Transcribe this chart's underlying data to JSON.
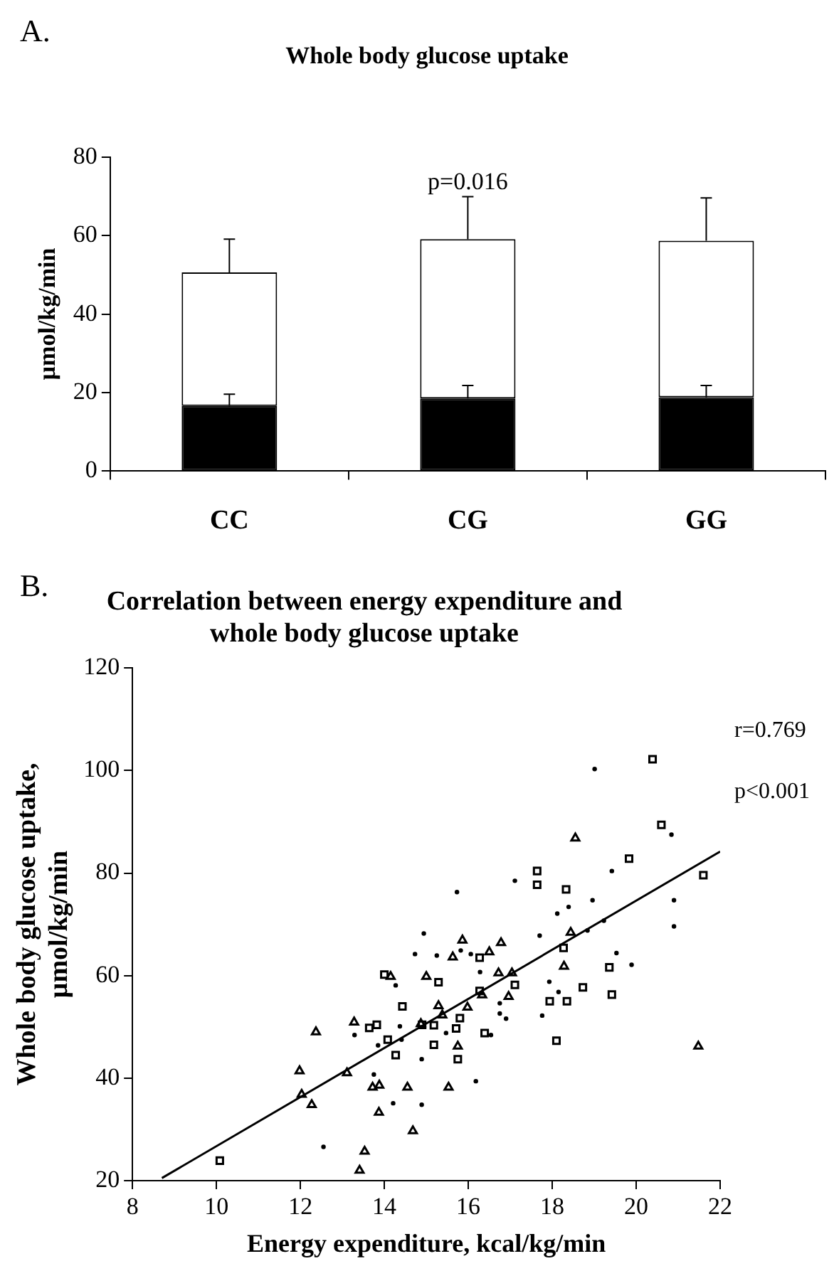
{
  "chart_data": [
    {
      "type": "bar",
      "title": "Whole body glucose uptake",
      "ylabel": "µmol/kg/min",
      "categories": [
        "CC",
        "CG",
        "GG"
      ],
      "stacked": true,
      "series": [
        {
          "color": "#000000",
          "values": [
            16.6,
            18.5,
            18.8
          ],
          "errors": [
            [
              16.6,
              19.6
            ],
            [
              18.5,
              21.8
            ],
            [
              18.8,
              21.8
            ]
          ]
        },
        {
          "color": "#ffffff",
          "values": [
            34.0,
            40.6,
            39.9
          ],
          "errors": [
            [
              50.6,
              59.1
            ],
            [
              59.1,
              69.9
            ],
            [
              58.7,
              69.6
            ]
          ]
        }
      ],
      "ylim": [
        0,
        80
      ],
      "yticks": [
        0,
        20,
        40,
        60,
        80
      ],
      "annotations": [
        "A.",
        "p=0.016"
      ]
    },
    {
      "type": "scatter",
      "title": "Correlation between energy expenditure and whole body glucose uptake",
      "xlabel": "Energy expenditure, kcal/kg/min",
      "ylabel": "Whole body glucose uptake, µmol/kg/min",
      "series": [
        {
          "type": "scatter",
          "marker": "triangle",
          "color": "#000000",
          "x": [
            18.55,
            15.86,
            16.78,
            16.5,
            15.63,
            18.28,
            16.72,
            17.04,
            18.44,
            16.33,
            16.96,
            21.48,
            15.98,
            15.29,
            15.38,
            15.75,
            15.53,
            14.15,
            15.0,
            13.28,
            12.37,
            14.87,
            11.98,
            12.03,
            12.27,
            13.11,
            13.72,
            13.88,
            14.55,
            13.87,
            14.68,
            13.53,
            13.41
          ],
          "values": [
            86.8,
            66.9,
            66.4,
            64.6,
            63.6,
            61.8,
            60.5,
            60.5,
            68.4,
            56.2,
            55.9,
            46.2,
            53.8,
            54.1,
            52.3,
            46.2,
            38.2,
            59.8,
            59.8,
            50.9,
            49.0,
            50.6,
            41.4,
            36.8,
            34.8,
            41.0,
            38.2,
            38.6,
            38.2,
            33.3,
            29.7,
            25.7,
            22.0
          ]
        },
        {
          "type": "scatter",
          "marker": "square",
          "color": "#000000",
          "x": [
            20.39,
            20.6,
            19.83,
            21.6,
            17.64,
            17.64,
            18.33,
            18.27,
            16.27,
            19.36,
            17.11,
            16.27,
            17.94,
            18.35,
            18.73,
            19.42,
            18.1,
            16.39,
            15.8,
            15.71,
            15.75,
            15.18,
            15.18,
            15.29,
            14.0,
            14.43,
            13.64,
            13.82,
            14.9,
            14.08,
            14.27,
            10.08
          ],
          "values": [
            102.2,
            89.4,
            82.8,
            79.6,
            80.4,
            77.7,
            76.8,
            65.4,
            63.5,
            61.6,
            58.2,
            57.0,
            55.0,
            55.0,
            57.7,
            56.3,
            47.3,
            48.8,
            51.7,
            49.7,
            43.7,
            50.3,
            46.5,
            58.7,
            60.2,
            54.0,
            49.8,
            50.4,
            50.4,
            47.5,
            44.5,
            23.9
          ]
        },
        {
          "type": "scatter",
          "marker": "circle",
          "color": "#000000",
          "x": [
            19.01,
            20.84,
            19.42,
            17.11,
            15.73,
            18.96,
            18.39,
            18.12,
            20.9,
            20.9,
            17.7,
            19.23,
            18.84,
            15.25,
            15.82,
            16.06,
            16.28,
            19.89,
            19.53,
            16.75,
            16.9,
            16.75,
            17.93,
            18.15,
            17.76,
            16.54,
            15.47,
            16.18,
            14.94,
            14.73,
            14.27,
            13.29,
            14.37,
            13.85,
            14.41,
            14.89,
            13.75,
            14.21,
            14.89,
            12.55
          ],
          "values": [
            100.3,
            87.5,
            80.4,
            78.5,
            76.3,
            74.7,
            73.4,
            72.1,
            74.7,
            69.6,
            67.8,
            70.7,
            68.8,
            63.9,
            64.9,
            64.2,
            60.7,
            62.1,
            64.4,
            54.6,
            51.6,
            52.6,
            58.8,
            56.8,
            52.2,
            48.4,
            48.8,
            39.4,
            68.2,
            64.2,
            58.1,
            48.4,
            50.1,
            46.4,
            47.5,
            43.7,
            40.7,
            35.1,
            34.8,
            26.6
          ]
        },
        {
          "type": "line",
          "marker": "none",
          "color": "#000000",
          "x": [
            8.7,
            22
          ],
          "values": [
            20.5,
            84.2
          ]
        }
      ],
      "xlim": [
        8,
        22
      ],
      "xticks": [
        8,
        10,
        12,
        14,
        16,
        18,
        20,
        22
      ],
      "ylim": [
        20,
        120
      ],
      "yticks": [
        20,
        40,
        60,
        80,
        100,
        120
      ],
      "annotations": [
        "B.",
        "r=0.769",
        "p<0.001"
      ]
    }
  ]
}
